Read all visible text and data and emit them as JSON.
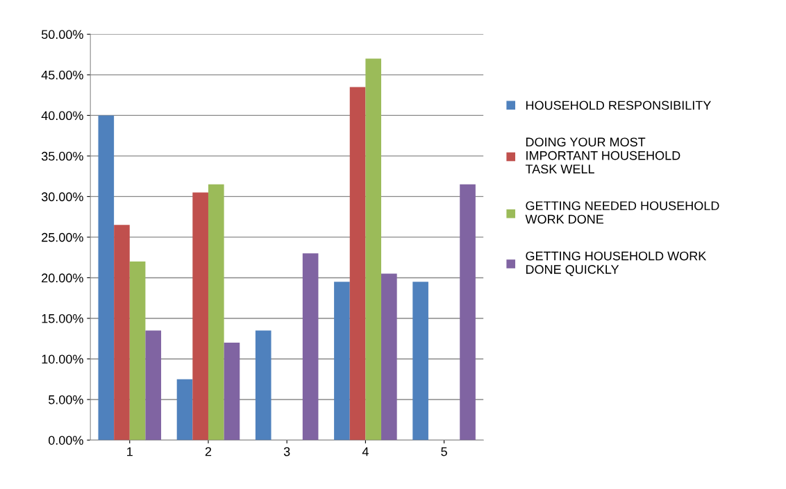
{
  "chart_data": {
    "type": "bar",
    "categories": [
      "1",
      "2",
      "3",
      "4",
      "5"
    ],
    "series": [
      {
        "name": "HOUSEHOLD RESPONSIBILITY",
        "color": "#4f81bd",
        "values": [
          40,
          7.5,
          13.5,
          19.5,
          19.5
        ]
      },
      {
        "name": "DOING YOUR MOST\nIMPORTANT HOUSEHOLD\nTASK WELL",
        "color": "#c0504d",
        "values": [
          26.5,
          30.5,
          0,
          43.5,
          null
        ]
      },
      {
        "name": "GETTING NEEDED HOUSEHOLD\nWORK DONE",
        "color": "#9bbb59",
        "values": [
          22,
          31.5,
          0,
          47,
          null
        ]
      },
      {
        "name": "GETTING HOUSEHOLD WORK\nDONE QUICKLY",
        "color": "#8064a2",
        "values": [
          13.5,
          12,
          23,
          20.5,
          31.5
        ]
      }
    ],
    "ylim": [
      0,
      50
    ],
    "yticks": [
      {
        "value": 0,
        "label": "0.00%"
      },
      {
        "value": 5,
        "label": "5.00%"
      },
      {
        "value": 10,
        "label": "10.00%"
      },
      {
        "value": 15,
        "label": "15.00%"
      },
      {
        "value": 20,
        "label": "20.00%"
      },
      {
        "value": 25,
        "label": "25.00%"
      },
      {
        "value": 30,
        "label": "30.00%"
      },
      {
        "value": 35,
        "label": "35.00%"
      },
      {
        "value": 40,
        "label": "40.00%"
      },
      {
        "value": 45,
        "label": "45.00%"
      },
      {
        "value": 50,
        "label": "50.00%"
      }
    ],
    "grid": "y",
    "legend": "right"
  }
}
